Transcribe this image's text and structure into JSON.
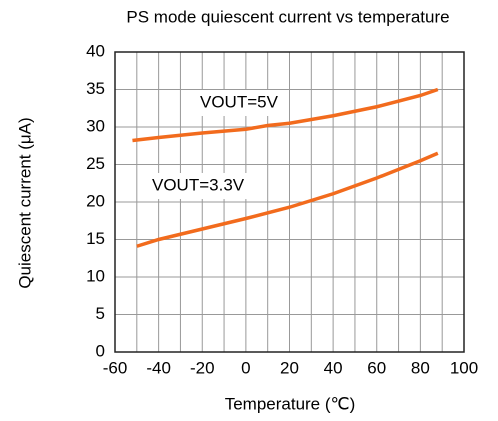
{
  "chart_data": {
    "type": "line",
    "title": "PS mode quiescent current vs temperature",
    "xlabel": "Temperature (℃)",
    "ylabel": "Quiescent current (μA)",
    "xlim": [
      -60,
      100
    ],
    "xticks": [
      -60,
      -40,
      -20,
      0,
      20,
      40,
      60,
      80,
      100
    ],
    "xminor": [
      -50,
      -30,
      -10,
      10,
      30,
      50,
      70,
      90
    ],
    "ylim": [
      0,
      40
    ],
    "yticks": [
      0,
      5,
      10,
      15,
      20,
      25,
      30,
      35,
      40
    ],
    "grid": true,
    "series": [
      {
        "name": "VOUT=5V",
        "color": "#f26b1d",
        "x": [
          -52,
          -40,
          -20,
          0,
          10,
          20,
          40,
          60,
          80,
          88
        ],
        "values": [
          28.2,
          28.6,
          29.2,
          29.7,
          30.2,
          30.5,
          31.5,
          32.7,
          34.2,
          35.0
        ]
      },
      {
        "name": "VOUT=3.3V",
        "color": "#f26b1d",
        "x": [
          -50,
          -40,
          -20,
          0,
          20,
          40,
          60,
          80,
          88
        ],
        "values": [
          14.1,
          15.0,
          16.4,
          17.8,
          19.3,
          21.1,
          23.2,
          25.5,
          26.5
        ]
      }
    ]
  }
}
